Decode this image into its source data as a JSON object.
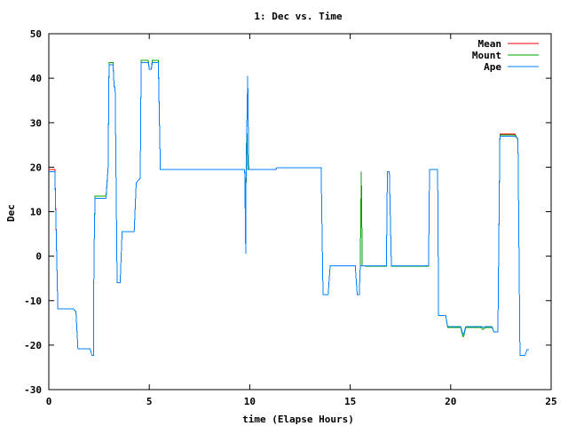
{
  "chart_data": {
    "type": "line",
    "title": "1: Dec vs. Time",
    "xlabel": "time (Elapse Hours)",
    "ylabel": "Dec",
    "xlim": [
      0,
      25
    ],
    "ylim": [
      -30,
      50
    ],
    "xticks": [
      0,
      5,
      10,
      15,
      20,
      25
    ],
    "yticks": [
      -30,
      -20,
      -10,
      0,
      10,
      20,
      30,
      40,
      50
    ],
    "grid": false,
    "legend_position": "top-right",
    "series": [
      {
        "name": "Mean",
        "color": "#ff0000",
        "points": [
          [
            0,
            19.5
          ],
          [
            0.3,
            19.5
          ],
          [
            0.45,
            -11.8
          ],
          [
            1.2,
            -11.8
          ],
          [
            1.35,
            -12.5
          ],
          [
            1.45,
            -20.8
          ],
          [
            2.05,
            -20.8
          ],
          [
            2.15,
            -22.3
          ],
          [
            2.22,
            -22.3
          ],
          [
            2.25,
            0
          ],
          [
            2.3,
            13.5
          ],
          [
            2.85,
            13.5
          ],
          [
            2.95,
            20
          ],
          [
            3.0,
            43.5
          ],
          [
            3.2,
            43.5
          ],
          [
            3.25,
            38
          ],
          [
            3.3,
            38
          ],
          [
            3.4,
            -6
          ],
          [
            3.55,
            -6
          ],
          [
            3.65,
            5.5
          ],
          [
            4.25,
            5.5
          ],
          [
            4.35,
            16.5
          ],
          [
            4.55,
            17.5
          ],
          [
            4.6,
            44
          ],
          [
            4.95,
            44
          ],
          [
            5.0,
            42
          ],
          [
            5.1,
            42
          ],
          [
            5.15,
            44
          ],
          [
            5.45,
            44
          ],
          [
            5.55,
            19.5
          ],
          [
            9.75,
            19.5
          ],
          [
            9.8,
            0.5
          ],
          [
            9.82,
            19.5
          ],
          [
            9.9,
            40.5
          ],
          [
            9.95,
            19.5
          ],
          [
            11.3,
            19.5
          ],
          [
            11.35,
            19.9
          ],
          [
            13.55,
            19.9
          ],
          [
            13.65,
            -8.7
          ],
          [
            13.9,
            -8.7
          ],
          [
            14.0,
            -2.2
          ],
          [
            15.25,
            -2.2
          ],
          [
            15.35,
            -8.7
          ],
          [
            15.45,
            -8.7
          ],
          [
            15.5,
            -2.2
          ],
          [
            15.75,
            -2.2
          ],
          [
            15.8,
            -2.3
          ],
          [
            16.8,
            -2.3
          ],
          [
            16.85,
            19
          ],
          [
            16.95,
            19
          ],
          [
            17.05,
            -2.3
          ],
          [
            18.9,
            -2.3
          ],
          [
            18.95,
            19.5
          ],
          [
            19.35,
            19.5
          ],
          [
            19.4,
            -13.3
          ],
          [
            19.75,
            -13.3
          ],
          [
            19.85,
            -16
          ],
          [
            20.5,
            -16
          ],
          [
            20.6,
            -18
          ],
          [
            20.65,
            -18
          ],
          [
            20.75,
            -16
          ],
          [
            21.5,
            -16
          ],
          [
            21.6,
            -16.5
          ],
          [
            21.75,
            -16
          ],
          [
            22.05,
            -16
          ],
          [
            22.15,
            -17
          ],
          [
            22.35,
            -17
          ],
          [
            22.45,
            27.5
          ],
          [
            23.2,
            27.5
          ],
          [
            23.3,
            26.5
          ],
          [
            23.35,
            26.5
          ],
          [
            23.45,
            -22.3
          ],
          [
            23.7,
            -22.3
          ],
          [
            23.8,
            -21
          ],
          [
            23.9,
            -21
          ]
        ]
      },
      {
        "name": "Mount",
        "color": "#00a000",
        "points": [
          [
            0,
            19
          ],
          [
            0.3,
            19
          ],
          [
            0.45,
            -11.8
          ],
          [
            1.2,
            -11.8
          ],
          [
            1.35,
            -12.5
          ],
          [
            1.45,
            -20.8
          ],
          [
            2.05,
            -20.8
          ],
          [
            2.15,
            -22.3
          ],
          [
            2.22,
            -22.3
          ],
          [
            2.25,
            0
          ],
          [
            2.3,
            13.5
          ],
          [
            2.85,
            13.5
          ],
          [
            2.95,
            20
          ],
          [
            3.0,
            43.5
          ],
          [
            3.2,
            43.5
          ],
          [
            3.25,
            38
          ],
          [
            3.3,
            38
          ],
          [
            3.4,
            -6
          ],
          [
            3.55,
            -6
          ],
          [
            3.65,
            5.5
          ],
          [
            4.25,
            5.5
          ],
          [
            4.35,
            16.5
          ],
          [
            4.55,
            17.5
          ],
          [
            4.6,
            44
          ],
          [
            4.95,
            44
          ],
          [
            5.0,
            42
          ],
          [
            5.1,
            42
          ],
          [
            5.15,
            44
          ],
          [
            5.45,
            44
          ],
          [
            5.55,
            19.5
          ],
          [
            9.75,
            19.5
          ],
          [
            9.8,
            10
          ],
          [
            9.85,
            30
          ],
          [
            9.9,
            19.5
          ],
          [
            11.3,
            19.5
          ],
          [
            11.35,
            19.9
          ],
          [
            13.55,
            19.9
          ],
          [
            13.65,
            -8.7
          ],
          [
            13.9,
            -8.7
          ],
          [
            14.0,
            -2.2
          ],
          [
            15.25,
            -2.2
          ],
          [
            15.35,
            -8.7
          ],
          [
            15.45,
            -8.7
          ],
          [
            15.5,
            -2.2
          ],
          [
            15.55,
            19
          ],
          [
            15.6,
            -2.2
          ],
          [
            15.75,
            -2.2
          ],
          [
            15.8,
            -2.3
          ],
          [
            16.8,
            -2.3
          ],
          [
            16.85,
            19
          ],
          [
            16.95,
            19
          ],
          [
            17.05,
            -2.3
          ],
          [
            18.9,
            -2.3
          ],
          [
            18.95,
            19.5
          ],
          [
            19.35,
            19.5
          ],
          [
            19.4,
            -13.3
          ],
          [
            19.75,
            -13.3
          ],
          [
            19.85,
            -16
          ],
          [
            20.5,
            -16
          ],
          [
            20.6,
            -18
          ],
          [
            20.65,
            -18
          ],
          [
            20.75,
            -16
          ],
          [
            21.5,
            -16
          ],
          [
            21.6,
            -16.5
          ],
          [
            21.75,
            -16
          ],
          [
            22.05,
            -16
          ],
          [
            22.15,
            -17
          ],
          [
            22.35,
            -17
          ],
          [
            22.45,
            27.3
          ],
          [
            23.2,
            27.3
          ],
          [
            23.3,
            26.5
          ],
          [
            23.35,
            26.5
          ],
          [
            23.45,
            -22.3
          ],
          [
            23.7,
            -22.3
          ],
          [
            23.8,
            -21
          ],
          [
            23.9,
            -21
          ]
        ]
      },
      {
        "name": "Ape",
        "color": "#0080ff",
        "points": [
          [
            0,
            19
          ],
          [
            0.3,
            19
          ],
          [
            0.45,
            -11.8
          ],
          [
            1.2,
            -11.8
          ],
          [
            1.35,
            -12.5
          ],
          [
            1.45,
            -20.8
          ],
          [
            2.05,
            -20.8
          ],
          [
            2.15,
            -22.3
          ],
          [
            2.22,
            -22.3
          ],
          [
            2.25,
            0
          ],
          [
            2.3,
            13
          ],
          [
            2.85,
            13
          ],
          [
            2.95,
            20
          ],
          [
            3.0,
            43
          ],
          [
            3.2,
            43
          ],
          [
            3.25,
            38
          ],
          [
            3.3,
            38
          ],
          [
            3.4,
            -6
          ],
          [
            3.55,
            -6
          ],
          [
            3.65,
            5.5
          ],
          [
            4.25,
            5.5
          ],
          [
            4.35,
            16.5
          ],
          [
            4.55,
            17.5
          ],
          [
            4.6,
            43.5
          ],
          [
            4.95,
            43.5
          ],
          [
            5.0,
            42
          ],
          [
            5.1,
            42
          ],
          [
            5.15,
            43.5
          ],
          [
            5.45,
            43.5
          ],
          [
            5.55,
            19.5
          ],
          [
            9.75,
            19.5
          ],
          [
            9.8,
            0.5
          ],
          [
            9.82,
            19.5
          ],
          [
            9.9,
            40.5
          ],
          [
            9.95,
            19.5
          ],
          [
            11.3,
            19.5
          ],
          [
            11.35,
            19.9
          ],
          [
            13.55,
            19.9
          ],
          [
            13.65,
            -8.7
          ],
          [
            13.9,
            -8.7
          ],
          [
            14.0,
            -2.2
          ],
          [
            15.25,
            -2.2
          ],
          [
            15.35,
            -8.7
          ],
          [
            15.45,
            -8.7
          ],
          [
            15.5,
            -2.2
          ],
          [
            15.75,
            -2.2
          ],
          [
            15.8,
            -2.2
          ],
          [
            16.8,
            -2.2
          ],
          [
            16.85,
            19
          ],
          [
            16.95,
            19
          ],
          [
            17.05,
            -2.2
          ],
          [
            18.9,
            -2.2
          ],
          [
            18.95,
            19.5
          ],
          [
            19.35,
            19.5
          ],
          [
            19.4,
            -13.3
          ],
          [
            19.75,
            -13.3
          ],
          [
            19.85,
            -15.8
          ],
          [
            20.5,
            -15.8
          ],
          [
            20.6,
            -17.5
          ],
          [
            20.65,
            -17.5
          ],
          [
            20.75,
            -15.8
          ],
          [
            21.5,
            -15.8
          ],
          [
            21.6,
            -16
          ],
          [
            21.75,
            -15.8
          ],
          [
            22.05,
            -15.8
          ],
          [
            22.15,
            -17
          ],
          [
            22.35,
            -17
          ],
          [
            22.45,
            27
          ],
          [
            23.2,
            27
          ],
          [
            23.3,
            26.5
          ],
          [
            23.35,
            26.5
          ],
          [
            23.45,
            -22.3
          ],
          [
            23.7,
            -22.3
          ],
          [
            23.8,
            -21
          ],
          [
            23.9,
            -21
          ]
        ]
      }
    ]
  }
}
